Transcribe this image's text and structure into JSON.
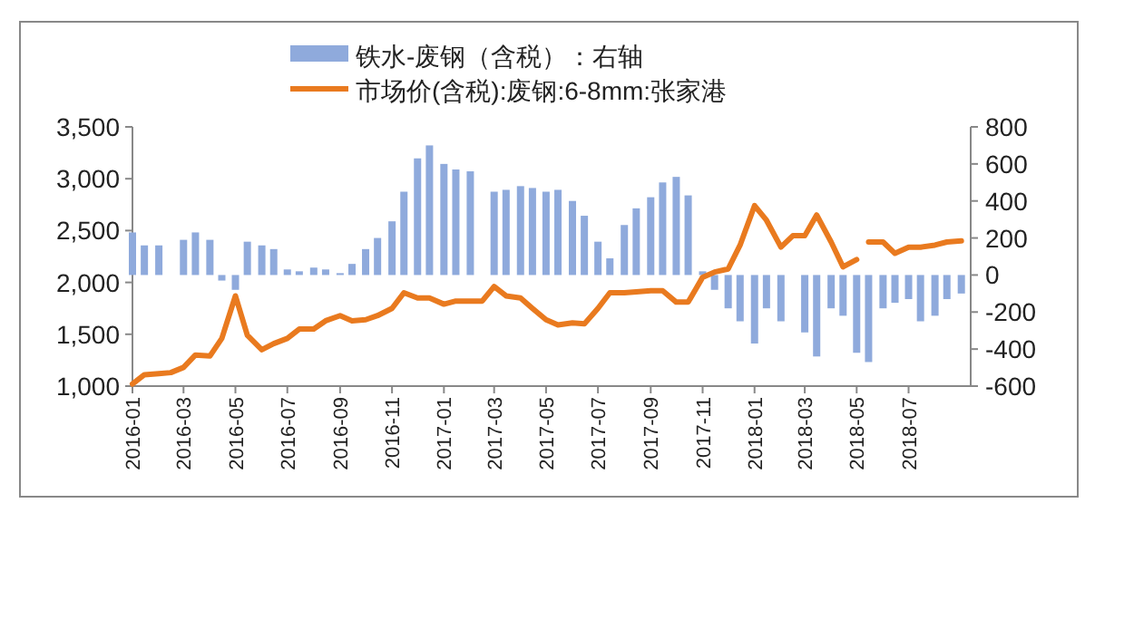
{
  "chart_data": {
    "type": "bar",
    "legend": "top",
    "x": [
      "2016-01-01",
      "2016-01-15",
      "2016-02-01",
      "2016-03-01",
      "2016-03-15",
      "2016-04-01",
      "2016-04-15",
      "2016-05-01",
      "2016-05-15",
      "2016-06-01",
      "2016-06-15",
      "2016-07-01",
      "2016-07-15",
      "2016-08-01",
      "2016-08-15",
      "2016-09-01",
      "2016-09-15",
      "2016-10-01",
      "2016-10-15",
      "2016-11-01",
      "2016-11-15",
      "2016-12-01",
      "2016-12-15",
      "2017-01-01",
      "2017-01-15",
      "2017-02-01",
      "2017-03-01",
      "2017-03-15",
      "2017-04-01",
      "2017-04-15",
      "2017-05-01",
      "2017-05-15",
      "2017-06-01",
      "2017-06-15",
      "2017-07-01",
      "2017-07-15",
      "2017-08-01",
      "2017-08-15",
      "2017-09-01",
      "2017-09-15",
      "2017-10-01",
      "2017-10-15",
      "2017-11-01",
      "2017-11-15",
      "2017-12-01",
      "2017-12-15",
      "2018-01-01",
      "2018-01-15",
      "2018-02-01",
      "2018-03-01",
      "2018-03-15",
      "2018-04-01",
      "2018-04-15",
      "2018-05-01",
      "2018-05-15",
      "2018-06-01",
      "2018-06-15",
      "2018-07-01",
      "2018-07-15",
      "2018-08-01",
      "2018-08-15",
      "2018-09-01"
    ],
    "series": [
      {
        "name": "铁水-废钢（含税）：右轴",
        "axis": "y2",
        "color": "#8faadc",
        "values": [
          230,
          160,
          160,
          190,
          230,
          190,
          -30,
          -80,
          180,
          160,
          140,
          30,
          20,
          40,
          30,
          10,
          60,
          140,
          200,
          290,
          450,
          630,
          700,
          600,
          570,
          560,
          450,
          460,
          480,
          470,
          450,
          460,
          400,
          320,
          180,
          90,
          270,
          360,
          420,
          500,
          530,
          430,
          20,
          -80,
          -180,
          -250,
          -370,
          -180,
          -250,
          -310,
          -440,
          -180,
          -220,
          -420,
          -470,
          -180,
          -150,
          -130,
          -250,
          -220,
          -130,
          -100
        ]
      },
      {
        "name": "市场价(含税):废钢:6-8mm:张家港",
        "type": "line",
        "axis": "y",
        "color": "#e97a1f",
        "x": [
          "2016-01-01",
          "2016-01-15",
          "2016-02-01",
          "2016-02-15",
          "2016-03-01",
          "2016-03-15",
          "2016-04-01",
          "2016-04-15",
          "2016-05-01",
          "2016-05-15",
          "2016-06-01",
          "2016-06-15",
          "2016-07-01",
          "2016-07-15",
          "2016-08-01",
          "2016-08-15",
          "2016-09-01",
          "2016-09-15",
          "2016-10-01",
          "2016-10-15",
          "2016-11-01",
          "2016-11-15",
          "2016-12-01",
          "2016-12-15",
          "2017-01-01",
          "2017-01-15",
          "2017-02-01",
          "2017-02-15",
          "2017-03-01",
          "2017-03-15",
          "2017-04-01",
          "2017-04-15",
          "2017-05-01",
          "2017-05-15",
          "2017-06-01",
          "2017-06-15",
          "2017-07-01",
          "2017-07-15",
          "2017-08-01",
          "2017-08-15",
          "2017-09-01",
          "2017-09-15",
          "2017-10-01",
          "2017-10-15",
          "2017-11-01",
          "2017-11-15",
          "2017-12-01",
          "2017-12-15",
          "2018-01-01",
          "2018-01-15",
          "2018-02-01",
          "2018-02-15",
          "2018-03-01",
          "2018-03-15",
          "2018-04-01",
          "2018-04-15",
          "2018-05-01",
          "2018-05-08",
          "2018-05-15",
          "2018-06-01",
          "2018-06-15",
          "2018-07-01",
          "2018-07-15",
          "2018-08-01",
          "2018-08-15",
          "2018-09-01"
        ],
        "values": [
          1020,
          1110,
          1120,
          1130,
          1180,
          1300,
          1290,
          1460,
          1870,
          1490,
          1350,
          1410,
          1460,
          1550,
          1550,
          1630,
          1680,
          1630,
          1640,
          1680,
          1750,
          1900,
          1850,
          1850,
          1790,
          1820,
          1820,
          1820,
          1960,
          1870,
          1850,
          1750,
          1640,
          1590,
          1610,
          1600,
          1750,
          1900,
          1900,
          1910,
          1920,
          1920,
          1810,
          1810,
          2050,
          2100,
          2130,
          2360,
          2740,
          2600,
          2340,
          2450,
          2450,
          2650,
          2390,
          2150,
          2220,
          null,
          2390,
          2390,
          2280,
          2340,
          2340,
          2360,
          2390,
          2400
        ]
      }
    ],
    "xlim": [
      "2016-01-01",
      "2018-09-12"
    ],
    "xticks": [
      "2016-01",
      "2016-03",
      "2016-05",
      "2016-07",
      "2016-09",
      "2016-11",
      "2017-01",
      "2017-03",
      "2017-05",
      "2017-07",
      "2017-09",
      "2017-11",
      "2018-01",
      "2018-03",
      "2018-05",
      "2018-07"
    ],
    "ylim": [
      1000,
      3500
    ],
    "yticks": [
      {
        "value": 1000,
        "label": "1,000"
      },
      {
        "value": 1500,
        "label": "1,500"
      },
      {
        "value": 2000,
        "label": "2,000"
      },
      {
        "value": 2500,
        "label": "2,500"
      },
      {
        "value": 3000,
        "label": "3,000"
      },
      {
        "value": 3500,
        "label": "3,500"
      }
    ],
    "y2lim": [
      -600,
      800
    ],
    "y2ticks": [
      -600,
      -400,
      -200,
      0,
      200,
      400,
      600,
      800
    ]
  }
}
